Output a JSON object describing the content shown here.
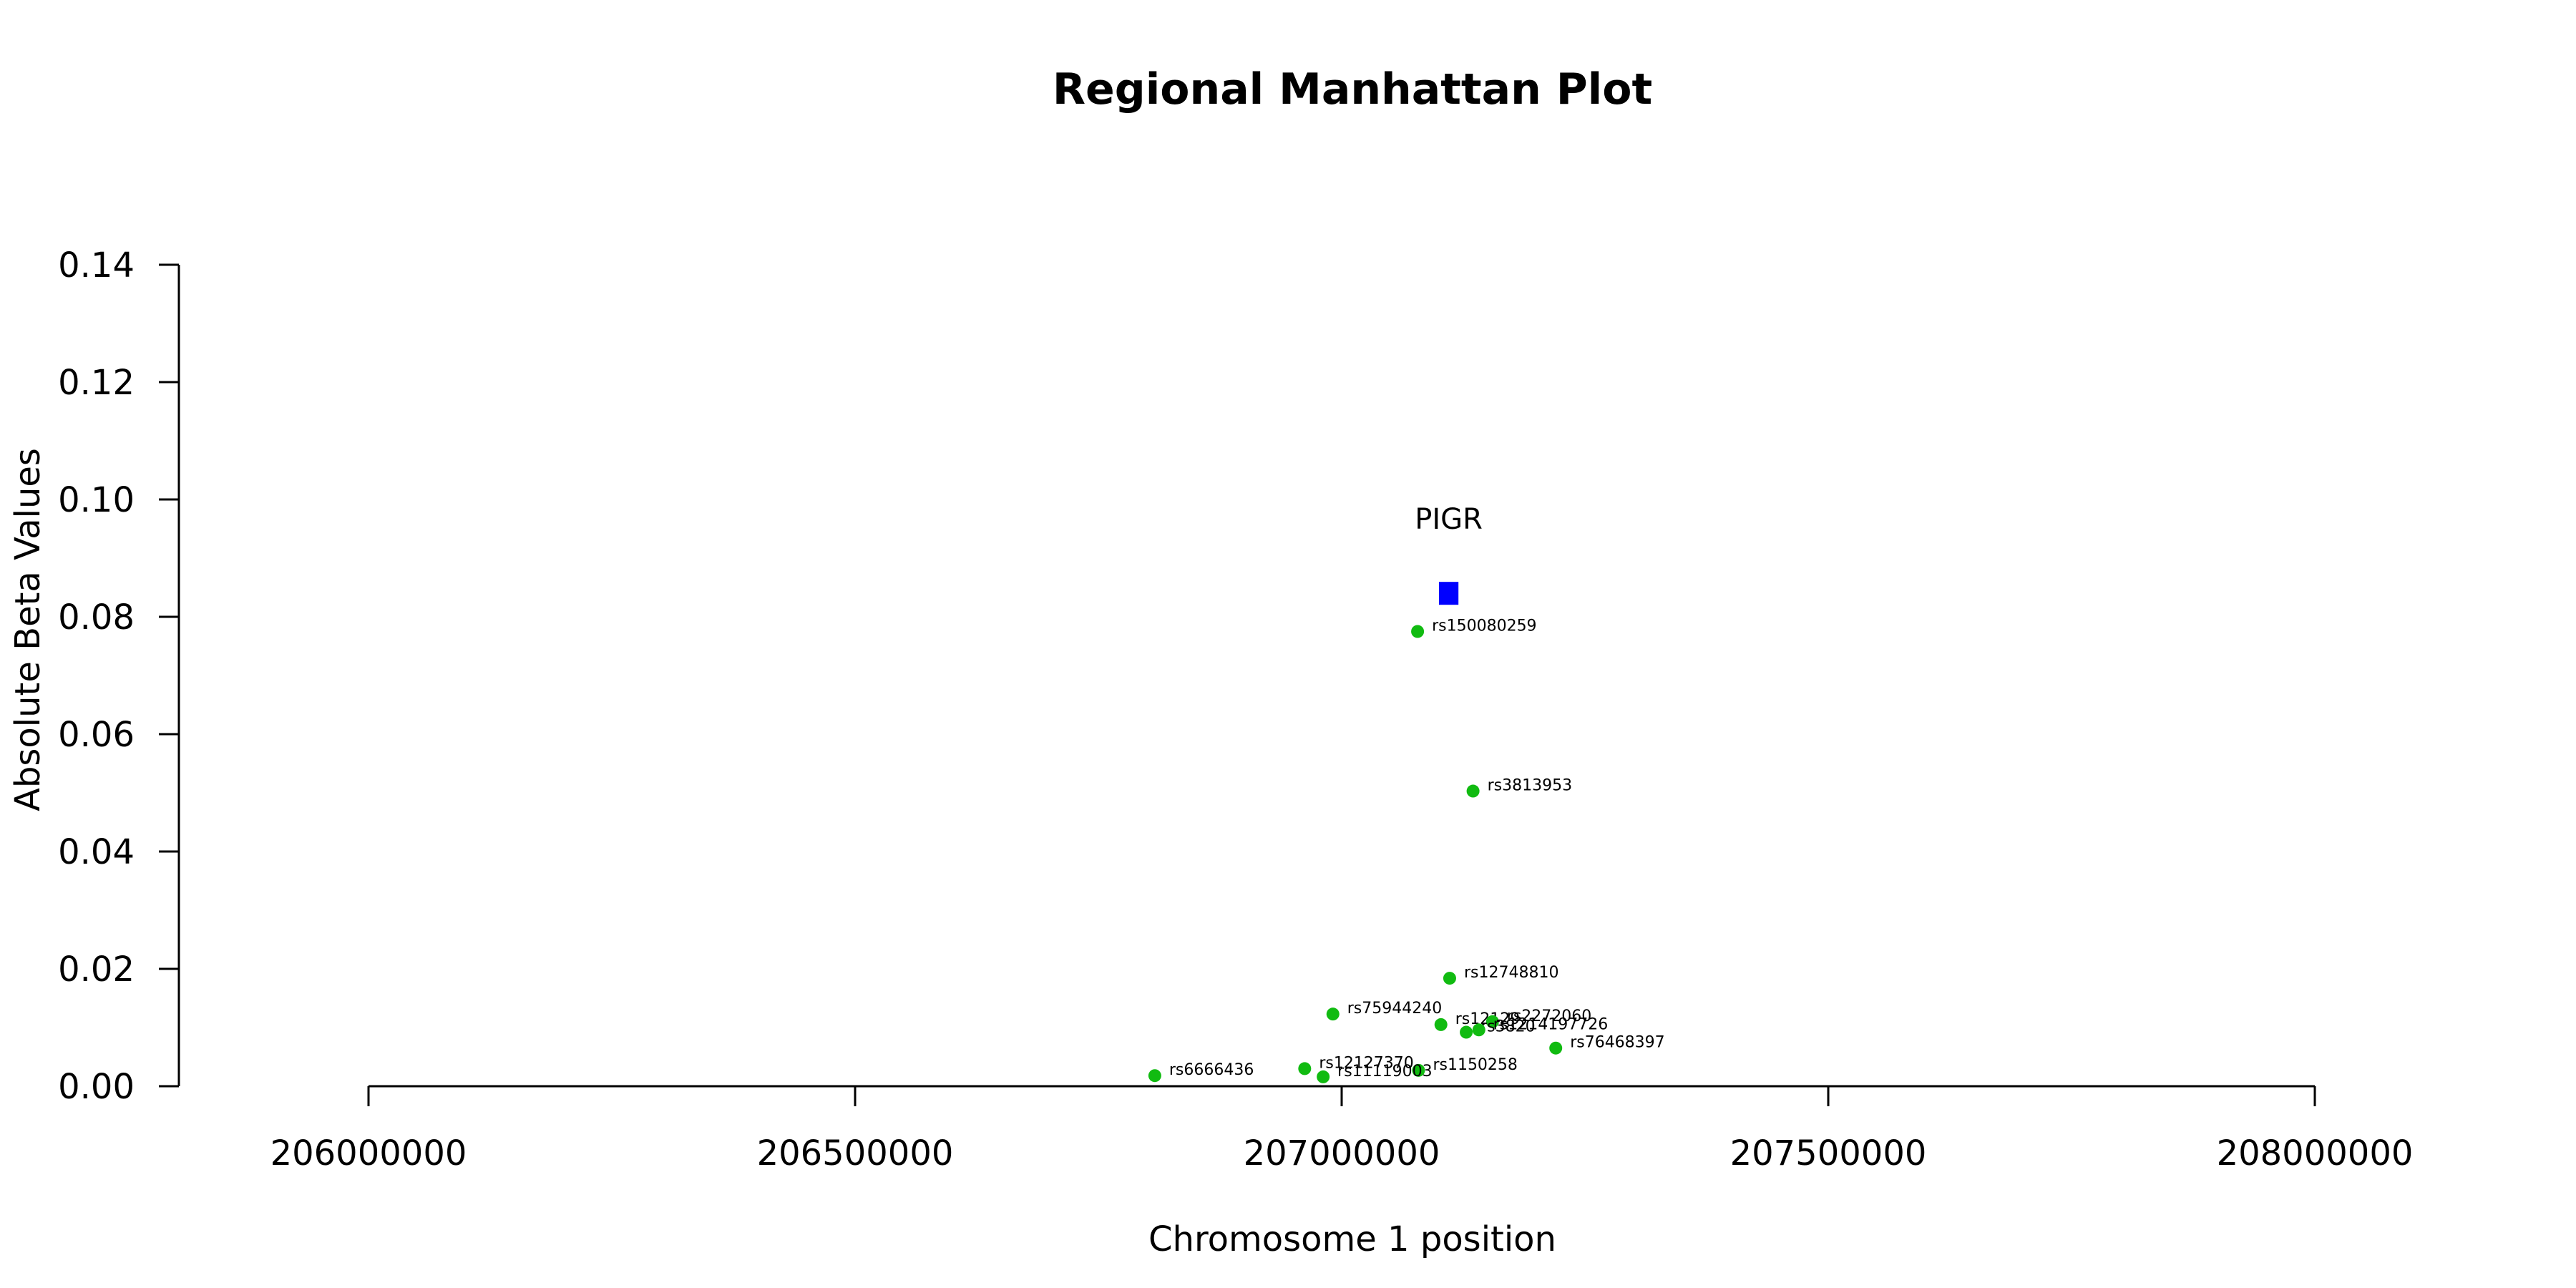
{
  "chart_data": {
    "type": "scatter",
    "title": "Regional Manhattan Plot",
    "xlabel": "Chromosome 1 position",
    "ylabel": "Absolute Beta Values",
    "xlim": [
      206000000,
      208000000
    ],
    "ylim": [
      0,
      0.14
    ],
    "x_ticks": [
      206000000,
      206500000,
      207000000,
      207500000,
      208000000
    ],
    "x_tick_labels": [
      "206000000",
      "206500000",
      "207000000",
      "207500000",
      "208000000"
    ],
    "y_ticks": [
      0,
      0.02,
      0.04,
      0.06,
      0.08,
      0.1,
      0.12,
      0.14
    ],
    "y_tick_labels": [
      "0.00",
      "0.02",
      "0.04",
      "0.06",
      "0.08",
      "0.10",
      "0.12",
      "0.14"
    ],
    "grid": false,
    "point_color": "#11bb11",
    "gene_color": "#0000ff",
    "genes": [
      {
        "name": "PIGR",
        "start": 207100000,
        "end": 207120000,
        "y": 0.084
      }
    ],
    "points": [
      {
        "name": "rs150080259",
        "x": 207078000,
        "y": 0.0775
      },
      {
        "name": "rs3813953",
        "x": 207135000,
        "y": 0.0503
      },
      {
        "name": "rs12748810",
        "x": 207111000,
        "y": 0.0184
      },
      {
        "name": "rs75944240",
        "x": 206991000,
        "y": 0.0123
      },
      {
        "name": "rs12129",
        "x": 207102000,
        "y": 0.0105
      },
      {
        "name": "rs2272060",
        "x": 207155000,
        "y": 0.011
      },
      {
        "name": "rs3820",
        "x": 207128000,
        "y": 0.0092
      },
      {
        "name": "rs1214197726",
        "x": 207141000,
        "y": 0.0096
      },
      {
        "name": "rs76468397",
        "x": 207220000,
        "y": 0.0065
      },
      {
        "name": "rs12127370",
        "x": 206962000,
        "y": 0.003
      },
      {
        "name": "rs1150258",
        "x": 207079000,
        "y": 0.0027
      },
      {
        "name": "rs11119003",
        "x": 206981000,
        "y": 0.0016
      },
      {
        "name": "rs6666436",
        "x": 206808000,
        "y": 0.0018
      }
    ]
  }
}
